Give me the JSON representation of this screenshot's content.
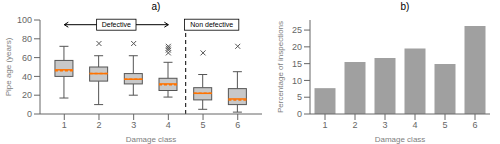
{
  "chart_data": [
    {
      "type": "box",
      "title": "a)",
      "x_label": "Damage class",
      "y_label": "Pipe age (years)",
      "x": [
        1,
        2,
        3,
        4,
        5,
        6
      ],
      "xlim": [
        0.3,
        6.7
      ],
      "xticks": [
        1,
        2,
        3,
        4,
        5,
        6
      ],
      "whislo": [
        17,
        10,
        20,
        18,
        5,
        2
      ],
      "q1": [
        40,
        35,
        32,
        25,
        15,
        10
      ],
      "med": [
        47,
        43,
        37,
        32,
        22,
        16
      ],
      "mean": [
        46,
        43,
        37,
        31,
        22,
        15
      ],
      "q3": [
        57,
        50,
        43,
        38,
        28,
        27
      ],
      "whishi": [
        72,
        62,
        62,
        55,
        42,
        45
      ],
      "fliers": [
        [],
        [
          75
        ],
        [
          75
        ],
        [
          65,
          68,
          70,
          72
        ],
        [
          65
        ],
        [
          72
        ]
      ],
      "ylim": [
        0,
        100
      ],
      "yticks": [
        0,
        20,
        40,
        60,
        80,
        100
      ],
      "color": "#c8c8c8",
      "marker": "x",
      "grid": false,
      "reference_line": {
        "x": 4.5,
        "line_style": "dashed"
      },
      "annotations": [
        {
          "text": "Defective",
          "x": 2.5,
          "y": 95,
          "arrow": [
            1,
            4
          ]
        },
        {
          "text": "Non defective",
          "x": 5.25,
          "y": 95,
          "arrow": [
            4.5,
            6
          ]
        }
      ]
    },
    {
      "type": "bar",
      "title": "b)",
      "x_label": "Damage class",
      "y_label": "Percentage of inspections",
      "categories": [
        1,
        2,
        3,
        4,
        5,
        6
      ],
      "values": [
        7.7,
        15.5,
        16.7,
        19.5,
        14.9,
        26.2
      ],
      "color": "#a0a0a0",
      "ylim": [
        0,
        28
      ],
      "yticks": [
        0,
        5,
        10,
        15,
        20,
        25
      ],
      "grid": false
    }
  ]
}
